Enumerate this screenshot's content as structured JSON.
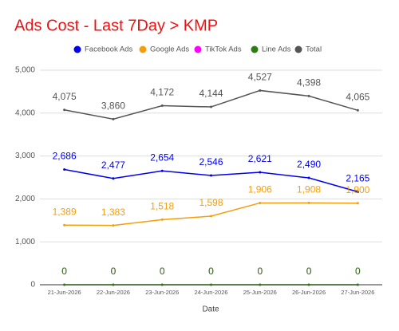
{
  "chart_data": {
    "type": "line",
    "title": "Ads Cost - Last 7Day > KMP",
    "x_label": "Date",
    "categories": [
      "21-Jun-2026",
      "22-Jun-2026",
      "23-Jun-2026",
      "24-Jun-2026",
      "25-Jun-2026",
      "26-Jun-2026",
      "27-Jun-2026"
    ],
    "series": [
      {
        "name": "Facebook Ads",
        "color": "#0000ee",
        "values": [
          2686,
          2477,
          2654,
          2546,
          2621,
          2490,
          2165
        ],
        "value_labels": [
          "2,686",
          "2,477",
          "2,654",
          "2,546",
          "2,621",
          "2,490",
          "2,165"
        ]
      },
      {
        "name": "Google Ads",
        "color": "#f59e0b",
        "values": [
          1389,
          1383,
          1518,
          1598,
          1906,
          1908,
          1900
        ],
        "value_labels": [
          "1,389",
          "1,383",
          "1,518",
          "1,598",
          "1,906",
          "1,908",
          "1,900"
        ]
      },
      {
        "name": "TikTok Ads",
        "color": "#ff00ff",
        "values": [
          0,
          0,
          0,
          0,
          0,
          0,
          0
        ],
        "value_labels": [
          "0",
          "0",
          "0",
          "0",
          "0",
          "0",
          "0"
        ]
      },
      {
        "name": "Line Ads",
        "color": "#2e7d12",
        "values": [
          0,
          0,
          0,
          0,
          0,
          0,
          0
        ],
        "value_labels": [
          "0",
          "0",
          "0",
          "0",
          "0",
          "0",
          "0"
        ]
      },
      {
        "name": "Total",
        "color": "#555555",
        "values": [
          4075,
          3860,
          4172,
          4144,
          4527,
          4398,
          4065
        ],
        "value_labels": [
          "4,075",
          "3,860",
          "4,172",
          "4,144",
          "4,527",
          "4,398",
          "4,065"
        ]
      }
    ],
    "ylim": [
      0,
      5000
    ],
    "yticks": [
      0,
      {
        "value": 1000,
        "label": "1,000"
      },
      {
        "value": 2000,
        "label": "2,000"
      },
      {
        "value": 3000,
        "label": "3,000"
      },
      {
        "value": 4000,
        "label": "4,000"
      },
      {
        "value": 5000,
        "label": "5,000"
      }
    ],
    "grid": true
  }
}
